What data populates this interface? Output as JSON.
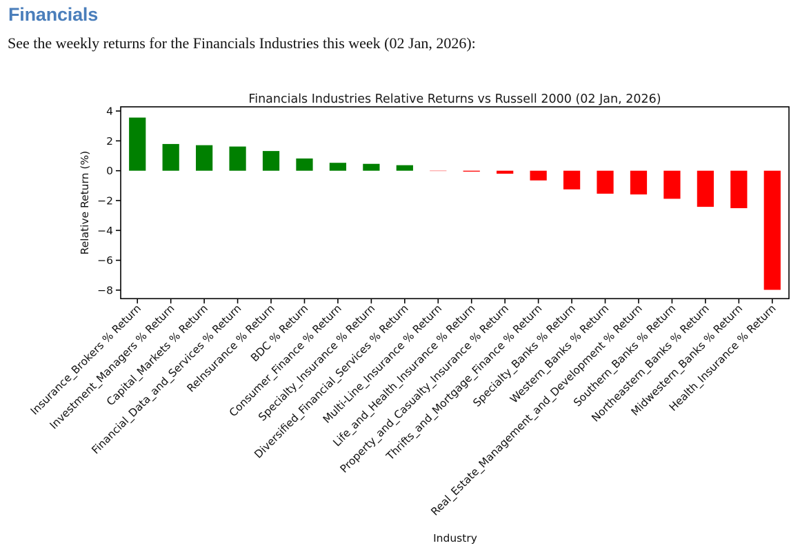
{
  "page": {
    "heading": "Financials",
    "heading_color": "#4a7ebb",
    "intro": "See the weekly returns for the Financials Industries this week (02 Jan, 2026):"
  },
  "chart_data": {
    "type": "bar",
    "title": "Financials Industries Relative Returns vs Russell 2000 (02 Jan, 2026)",
    "xlabel": "Industry",
    "ylabel": "Relative Return (%)",
    "categories": [
      "Insurance_Brokers % Return",
      "Investment_Managers % Return",
      "Capital_Markets % Return",
      "Financial_Data_and_Services % Return",
      "ReInsurance % Return",
      "BDC % Return",
      "Consumer_Finance % Return",
      "Specialty_Insurance % Return",
      "Diversified_Financial_Services % Return",
      "Multi-Line_Insurance % Return",
      "Life_and_Health_Insurance % Return",
      "Property_and_Casualty_Insurance % Return",
      "Thrifts_and_Mortgage_Finance % Return",
      "Specialty_Banks % Return",
      "Western_Banks % Return",
      "Real_Estate_Management_and_Development % Return",
      "Southern_Banks % Return",
      "Northeastern_Banks % Return",
      "Midwestern_Banks % Return",
      "Health_Insurance % Return"
    ],
    "values": [
      3.56,
      1.79,
      1.71,
      1.62,
      1.32,
      0.82,
      0.53,
      0.46,
      0.37,
      -0.02,
      -0.06,
      -0.2,
      -0.65,
      -1.25,
      -1.54,
      -1.59,
      -1.88,
      -2.42,
      -2.51,
      -7.98
    ],
    "positive_color": "#008000",
    "negative_color": "#ff0000",
    "ylim": [
      -8.57,
      4.28
    ],
    "yticks": [
      4,
      2,
      0,
      -2,
      -4,
      -6,
      -8
    ],
    "x_tick_rotation": 45,
    "grid": false,
    "legend": "none"
  }
}
